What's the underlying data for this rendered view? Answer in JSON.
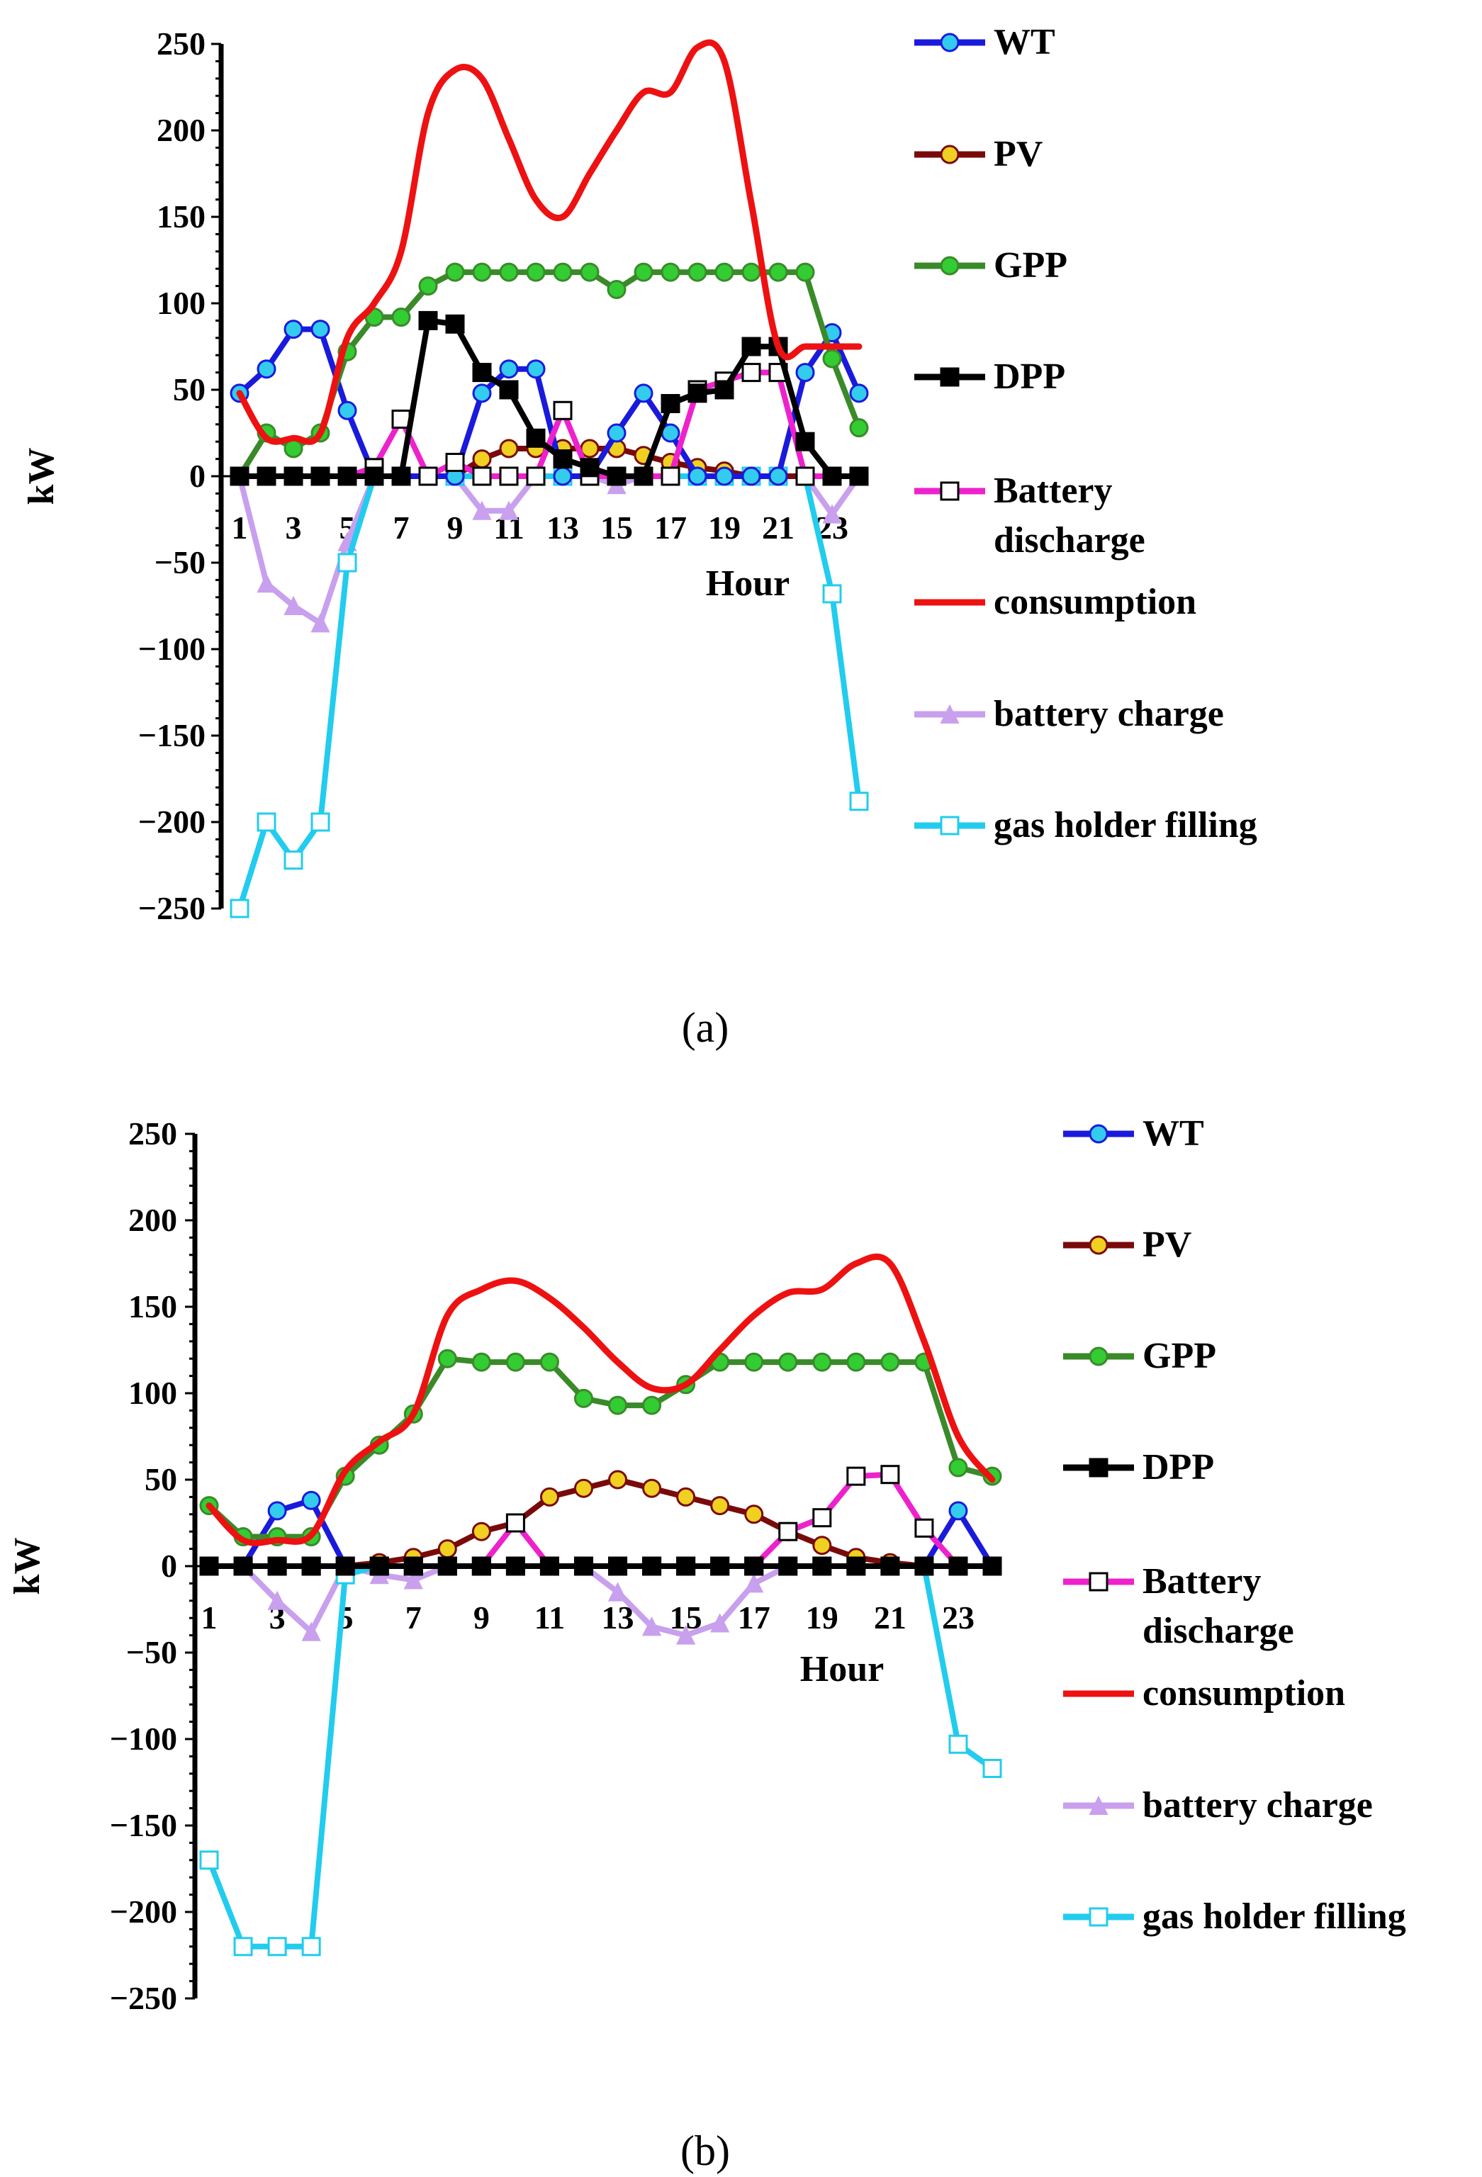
{
  "chart_data": [
    {
      "type": "line",
      "panel_label": "(a)",
      "xlabel": "Hour",
      "ylabel": "kW",
      "ylim": [
        -250,
        250
      ],
      "yticks": [
        250,
        200,
        150,
        100,
        50,
        0,
        -50,
        -100,
        -150,
        -200,
        -250
      ],
      "xtick_labels": [
        "1",
        "3",
        "5",
        "7",
        "9",
        "11",
        "13",
        "15",
        "17",
        "19",
        "21",
        "23"
      ],
      "x": [
        1,
        2,
        3,
        4,
        5,
        6,
        7,
        8,
        9,
        10,
        11,
        12,
        13,
        14,
        15,
        16,
        17,
        18,
        19,
        20,
        21,
        22,
        23,
        24
      ],
      "series": [
        {
          "name": "WT",
          "color": "#1a1adc",
          "marker": "circle",
          "marker_fill": "#33ccee",
          "values": [
            48,
            62,
            85,
            85,
            38,
            0,
            0,
            0,
            0,
            48,
            62,
            62,
            0,
            0,
            25,
            48,
            25,
            0,
            0,
            0,
            0,
            60,
            83,
            48
          ]
        },
        {
          "name": "PV",
          "color": "#7a0a0a",
          "marker": "circle",
          "marker_fill": "#f0d020",
          "values": [
            0,
            0,
            0,
            0,
            0,
            0,
            0,
            0,
            0,
            10,
            16,
            16,
            16,
            16,
            16,
            12,
            8,
            5,
            3,
            0,
            0,
            0,
            0,
            0
          ]
        },
        {
          "name": "GPP",
          "color": "#3a8a2a",
          "marker": "circle",
          "marker_fill": "#33cc33",
          "values": [
            0,
            25,
            16,
            25,
            72,
            92,
            92,
            110,
            118,
            118,
            118,
            118,
            118,
            118,
            108,
            118,
            118,
            118,
            118,
            118,
            118,
            118,
            68,
            28
          ]
        },
        {
          "name": "DPP",
          "color": "#000000",
          "marker": "square",
          "marker_fill": "#000000",
          "values": [
            0,
            0,
            0,
            0,
            0,
            0,
            0,
            90,
            88,
            60,
            50,
            22,
            10,
            5,
            0,
            0,
            42,
            48,
            50,
            75,
            75,
            20,
            0,
            0
          ]
        },
        {
          "name": "Battery discharge",
          "color": "#ee22cc",
          "marker": "square",
          "marker_fill": "#ffffff",
          "values": [
            0,
            0,
            0,
            0,
            0,
            5,
            33,
            0,
            8,
            0,
            0,
            0,
            38,
            0,
            0,
            0,
            0,
            50,
            55,
            60,
            60,
            0,
            0,
            0
          ]
        },
        {
          "name": "consumption",
          "color": "#ee1111",
          "marker": "none",
          "marker_fill": "#ee1111",
          "values": [
            48,
            22,
            22,
            25,
            80,
            100,
            130,
            210,
            235,
            230,
            195,
            160,
            150,
            175,
            200,
            222,
            222,
            248,
            240,
            158,
            75,
            75,
            75,
            75
          ]
        },
        {
          "name": "battery charge",
          "color": "#c8a0ee",
          "marker": "triangle",
          "marker_fill": "#c8a0ee",
          "values": [
            0,
            -62,
            -75,
            -85,
            -38,
            0,
            0,
            0,
            0,
            -20,
            -20,
            0,
            0,
            0,
            -5,
            0,
            0,
            0,
            0,
            0,
            0,
            0,
            -22,
            0
          ]
        },
        {
          "name": "gas holder filling",
          "color": "#22ccee",
          "marker": "square",
          "marker_fill": "#ffffff",
          "values": [
            -250,
            -200,
            -222,
            -200,
            -50,
            0,
            0,
            0,
            0,
            0,
            0,
            0,
            0,
            0,
            0,
            0,
            0,
            0,
            0,
            0,
            0,
            0,
            -68,
            -188
          ]
        }
      ]
    },
    {
      "type": "line",
      "panel_label": "(b)",
      "xlabel": "Hour",
      "ylabel": "kW",
      "ylim": [
        -250,
        250
      ],
      "yticks": [
        250,
        200,
        150,
        100,
        50,
        0,
        -50,
        -100,
        -150,
        -200,
        -250
      ],
      "xtick_labels": [
        "1",
        "3",
        "5",
        "7",
        "9",
        "11",
        "13",
        "15",
        "17",
        "19",
        "21",
        "23"
      ],
      "x": [
        1,
        2,
        3,
        4,
        5,
        6,
        7,
        8,
        9,
        10,
        11,
        12,
        13,
        14,
        15,
        16,
        17,
        18,
        19,
        20,
        21,
        22,
        23,
        24
      ],
      "series": [
        {
          "name": "WT",
          "color": "#1a1adc",
          "marker": "circle",
          "marker_fill": "#33ccee",
          "values": [
            0,
            0,
            32,
            38,
            0,
            0,
            0,
            0,
            0,
            0,
            0,
            0,
            0,
            0,
            0,
            0,
            0,
            0,
            0,
            0,
            0,
            0,
            32,
            0
          ]
        },
        {
          "name": "PV",
          "color": "#7a0a0a",
          "marker": "circle",
          "marker_fill": "#f0d020",
          "values": [
            0,
            0,
            0,
            0,
            0,
            2,
            5,
            10,
            20,
            25,
            40,
            45,
            50,
            45,
            40,
            35,
            30,
            20,
            12,
            5,
            2,
            0,
            0,
            0
          ]
        },
        {
          "name": "GPP",
          "color": "#3a8a2a",
          "marker": "circle",
          "marker_fill": "#33cc33",
          "values": [
            35,
            17,
            17,
            17,
            52,
            70,
            88,
            120,
            118,
            118,
            118,
            97,
            93,
            93,
            105,
            118,
            118,
            118,
            118,
            118,
            118,
            118,
            57,
            52
          ]
        },
        {
          "name": "DPP",
          "color": "#000000",
          "marker": "square",
          "marker_fill": "#000000",
          "values": [
            0,
            0,
            0,
            0,
            0,
            0,
            0,
            0,
            0,
            0,
            0,
            0,
            0,
            0,
            0,
            0,
            0,
            0,
            0,
            0,
            0,
            0,
            0,
            0
          ]
        },
        {
          "name": "Battery discharge",
          "color": "#ee22cc",
          "marker": "square",
          "marker_fill": "#ffffff",
          "values": [
            0,
            0,
            0,
            0,
            0,
            0,
            0,
            0,
            0,
            25,
            0,
            0,
            0,
            0,
            0,
            0,
            0,
            20,
            28,
            52,
            53,
            22,
            0,
            0
          ]
        },
        {
          "name": "consumption",
          "color": "#ee1111",
          "marker": "none",
          "marker_fill": "#ee1111",
          "values": [
            35,
            15,
            15,
            18,
            55,
            72,
            88,
            145,
            160,
            165,
            155,
            138,
            118,
            103,
            105,
            125,
            145,
            158,
            160,
            175,
            175,
            130,
            75,
            50
          ]
        },
        {
          "name": "battery charge",
          "color": "#c8a0ee",
          "marker": "triangle",
          "marker_fill": "#c8a0ee",
          "values": [
            0,
            0,
            -20,
            -38,
            0,
            -5,
            -8,
            0,
            0,
            0,
            0,
            0,
            -15,
            -35,
            -40,
            -33,
            -10,
            0,
            0,
            0,
            0,
            0,
            0,
            0
          ]
        },
        {
          "name": "gas holder filling",
          "color": "#22ccee",
          "marker": "square",
          "marker_fill": "#ffffff",
          "values": [
            -170,
            -220,
            -220,
            -220,
            -5,
            0,
            0,
            0,
            0,
            0,
            0,
            0,
            0,
            0,
            0,
            0,
            0,
            0,
            0,
            0,
            0,
            0,
            -103,
            -117
          ]
        }
      ]
    }
  ]
}
